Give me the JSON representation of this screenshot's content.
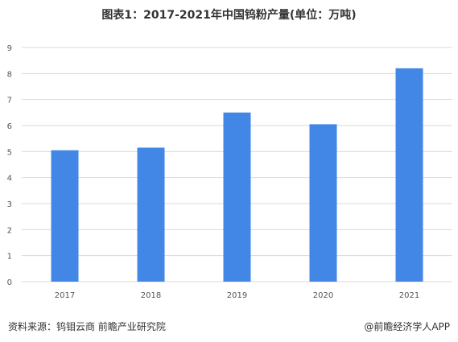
{
  "chart_data": {
    "type": "bar",
    "title": "图表1：2017-2021年中国钨粉产量(单位：万吨)",
    "categories": [
      "2017",
      "2018",
      "2019",
      "2020",
      "2021"
    ],
    "values": [
      5.05,
      5.15,
      6.5,
      6.05,
      8.2
    ],
    "ylim": [
      0,
      9
    ],
    "yticks": [
      0,
      1,
      2,
      3,
      4,
      5,
      6,
      7,
      8,
      9
    ],
    "grid": true,
    "legend": "none",
    "bar_color": "#4286e6",
    "grid_color": "#d9d9d9"
  },
  "footer": {
    "source": "资料来源：钨钼云商 前瞻产业研究院",
    "credit": "@前瞻经济学人APP"
  }
}
